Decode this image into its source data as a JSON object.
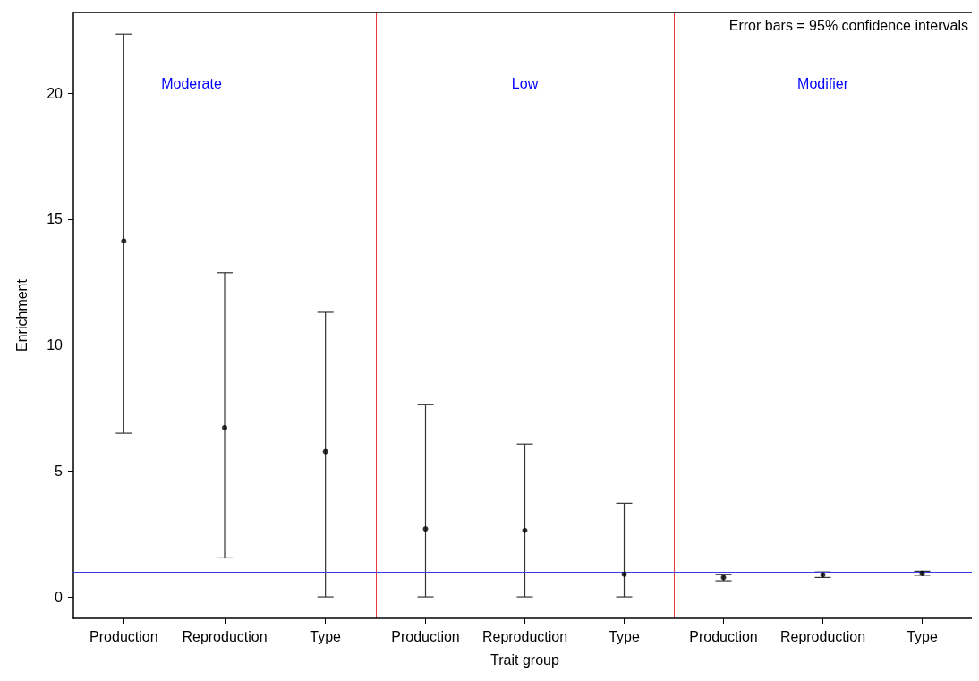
{
  "chart_data": [
    {
      "type": "scatter",
      "title": "Moderate",
      "ylabel": "Enrichment",
      "categories": [
        "Production",
        "Reproduction",
        "Type"
      ],
      "values": [
        14.13,
        6.72,
        5.77
      ],
      "errors": [
        [
          6.5,
          22.34
        ],
        [
          1.55,
          12.87
        ],
        [
          0,
          11.3
        ]
      ],
      "color": "#000000",
      "marker": "circle",
      "ylim": [
        -0.85,
        23.2
      ],
      "yticks": [
        0,
        5,
        10,
        15,
        20
      ],
      "ref_lines": [
        {
          "axis": "y",
          "value": 1,
          "color": "#3a3ae8"
        }
      ],
      "grid": false
    },
    {
      "type": "scatter",
      "title": "Low",
      "xlabel": "Trait group",
      "categories": [
        "Production",
        "Reproduction",
        "Type"
      ],
      "values": [
        2.7,
        2.64,
        0.9
      ],
      "errors": [
        [
          0,
          7.63
        ],
        [
          0,
          6.07
        ],
        [
          0,
          3.72
        ]
      ],
      "color": "#000000",
      "marker": "circle",
      "ylim": [
        -0.85,
        23.2
      ],
      "yticks": [
        0,
        5,
        10,
        15,
        20
      ],
      "tick_labels": "x",
      "ref_lines": [
        {
          "axis": "y",
          "value": 1,
          "color": "#3a3ae8"
        }
      ],
      "grid": false
    },
    {
      "type": "scatter",
      "title": "Modifier",
      "categories": [
        "Production",
        "Reproduction",
        "Type"
      ],
      "values": [
        0.77,
        0.88,
        0.93
      ],
      "errors": [
        [
          0.64,
          0.9
        ],
        [
          0.77,
          0.99
        ],
        [
          0.86,
          1.02
        ]
      ],
      "color": "#000000",
      "marker": "circle",
      "ylim": [
        -0.85,
        23.2
      ],
      "yticks": [
        0,
        5,
        10,
        15,
        20
      ],
      "tick_labels": "x",
      "ref_lines": [
        {
          "axis": "y",
          "value": 1,
          "color": "#3a3ae8"
        }
      ],
      "annotations": [
        "Error bars = 95% confidence intervals"
      ],
      "grid": false
    }
  ]
}
